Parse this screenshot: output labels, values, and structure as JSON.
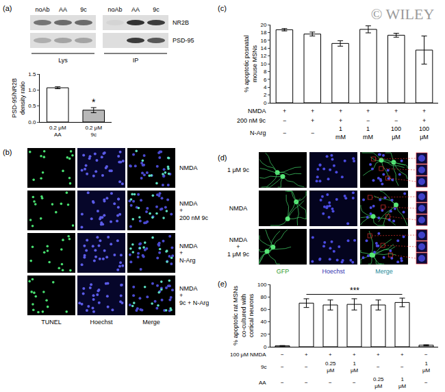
{
  "panel_labels": [
    "(a)",
    "(b)",
    "(c)",
    "(d)",
    "(e)"
  ],
  "watermark": "© WILEY",
  "blot": {
    "lanes": [
      "noAb",
      "AA",
      "9c",
      "noAb",
      "AA",
      "9c"
    ],
    "bands": [
      "NR2B",
      "PSD-95"
    ],
    "groups": [
      "Lys",
      "IP"
    ]
  },
  "micrographs_b": {
    "rows": [
      "NMDA",
      "NMDA\n+\n200 nM 9c",
      "NMDA\n+\nN-Arg",
      "NMDA\n+\n9c + N-Arg"
    ],
    "columns": [
      "TUNEL",
      "Hoechst",
      "Merge"
    ]
  },
  "micrographs_d": {
    "rows": [
      "1 μM 9c",
      "NMDA",
      "NMDA\n+\n1 μM 9c"
    ],
    "columns": [
      "GFP",
      "Hoechst",
      "Merge"
    ]
  },
  "chart_data": [
    {
      "type": "bar",
      "categories": [
        "0.2 μM\nAA",
        "0.2 μM\n9c"
      ],
      "values": [
        1.07,
        0.37
      ],
      "errors": [
        0.03,
        0.08
      ],
      "colors": [
        "#ffffff",
        "#b8b8b8"
      ],
      "y_label": "PSD-95/NR2B\ndensity ratio",
      "ylim": [
        0,
        1.5
      ],
      "yticks": [
        {
          "value": 0,
          "label": "0.0"
        },
        {
          "value": 0.5,
          "label": "0.5"
        },
        {
          "value": 1,
          "label": "1.0"
        },
        {
          "value": 1.5,
          "label": "1.5"
        }
      ],
      "grid": false,
      "annotations": [
        {
          "text": "*",
          "category": "0.2 μM\n9c"
        }
      ]
    },
    {
      "type": "bar",
      "categories": [
        null,
        null,
        null,
        null,
        null,
        null
      ],
      "values": [
        18.7,
        17.6,
        15.2,
        18.8,
        17.3,
        13.5
      ],
      "errors": [
        0.3,
        0.5,
        0.7,
        0.9,
        0.5,
        3.6
      ],
      "color": "#ffffff",
      "y_label": "% apoptotic posnatal\nmouse MSNs",
      "ylim": [
        0,
        20
      ],
      "yticks": [
        0,
        2,
        4,
        6,
        8,
        10,
        12,
        14,
        16,
        18,
        20
      ],
      "grid": false,
      "conditions": [
        {
          "label": "NMDA",
          "cells": [
            "+",
            "+",
            "+",
            "+",
            "+",
            "+"
          ]
        },
        {
          "label": "200 nM 9c",
          "cells": [
            "−",
            "+",
            "+",
            "−",
            "−",
            "+"
          ]
        },
        {
          "label": "N-Arg",
          "cells": [
            "−",
            "−",
            "1\nmM",
            "1\nmM",
            "100\nμM",
            "100\nμM"
          ]
        }
      ]
    },
    {
      "type": "bar",
      "categories": [
        null,
        null,
        null,
        null,
        null,
        null,
        null
      ],
      "values": [
        1.5,
        70,
        67,
        68,
        67,
        71,
        2.5
      ],
      "errors": [
        0.5,
        7,
        8,
        9,
        8,
        7,
        0.8
      ],
      "color": "#ffffff",
      "y_label": "% apoptotic rat MSNs\nco-cultured with\ncortical neurons",
      "ylim": [
        0,
        100
      ],
      "yticks": [
        0,
        20,
        40,
        60,
        80,
        100
      ],
      "grid": false,
      "annotations": [
        {
          "text": "***",
          "span": [
            1,
            5
          ]
        }
      ],
      "conditions": [
        {
          "label": "100 μM NMDA",
          "cells": [
            "−",
            "+",
            "+",
            "+",
            "+",
            "+",
            "−"
          ]
        },
        {
          "label": "9c",
          "cells": [
            "−",
            "−",
            "0.25\nμM",
            "1\nμM",
            "−",
            "−",
            "1\nμM"
          ]
        },
        {
          "label": "AA",
          "cells": [
            "−",
            "−",
            "−",
            "−",
            "0.25\nμM",
            "1\nμM",
            "−"
          ]
        }
      ]
    }
  ]
}
